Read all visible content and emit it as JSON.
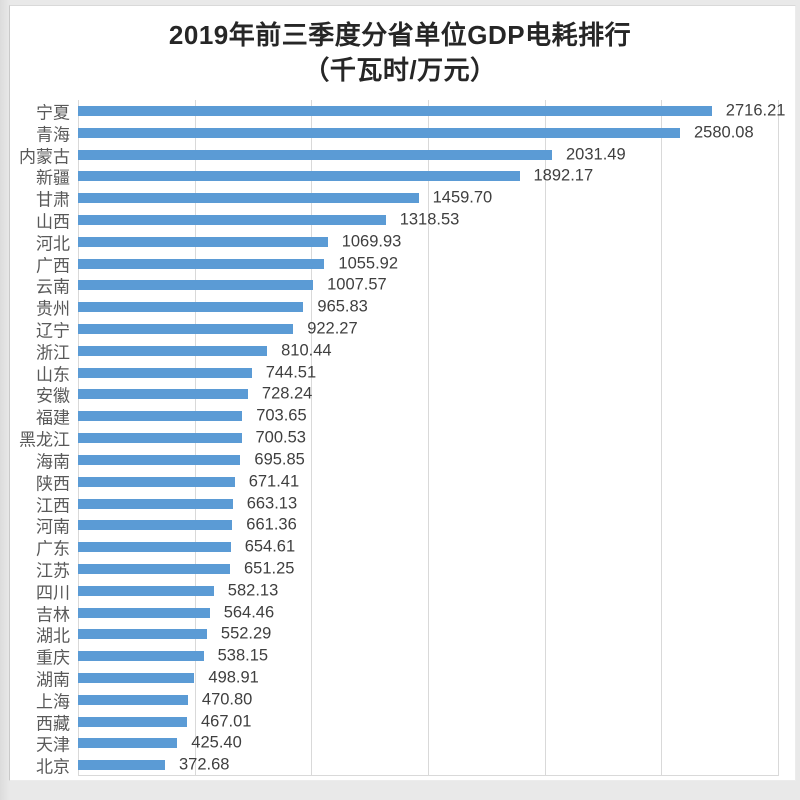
{
  "title": {
    "line1": "2019年前三季度分省单位GDP电耗排行",
    "line2": "（千瓦时/万元）"
  },
  "colors": {
    "bar": "#5b9bd5",
    "gridline": "#d9d9d9",
    "category_label": "#595959",
    "value_label": "#3f3f3f",
    "title_text": "#262626",
    "card_background": "#ffffff",
    "frame_background": "#e9e9e9"
  },
  "chart_data": {
    "type": "bar",
    "orientation": "horizontal",
    "title": "2019年前三季度分省单位GDP电耗排行（千瓦时/万元）",
    "xlabel": "",
    "ylabel": "",
    "xlim": [
      0,
      3000
    ],
    "gridline_interval": 500,
    "grid": true,
    "legend": false,
    "categories": [
      "宁夏",
      "青海",
      "内蒙古",
      "新疆",
      "甘肃",
      "山西",
      "河北",
      "广西",
      "云南",
      "贵州",
      "辽宁",
      "浙江",
      "山东",
      "安徽",
      "福建",
      "黑龙江",
      "海南",
      "陕西",
      "江西",
      "河南",
      "广东",
      "江苏",
      "四川",
      "吉林",
      "湖北",
      "重庆",
      "湖南",
      "上海",
      "西藏",
      "天津",
      "北京"
    ],
    "values": [
      2716.21,
      2580.08,
      2031.49,
      1892.17,
      1459.7,
      1318.53,
      1069.93,
      1055.92,
      1007.57,
      965.83,
      922.27,
      810.44,
      744.51,
      728.24,
      703.65,
      700.53,
      695.85,
      671.41,
      663.13,
      661.36,
      654.61,
      651.25,
      582.13,
      564.46,
      552.29,
      538.15,
      498.91,
      470.8,
      467.01,
      425.4,
      372.68
    ],
    "value_labels": [
      "2716.21",
      "2580.08",
      "2031.49",
      "1892.17",
      "1459.70",
      "1318.53",
      "1069.93",
      "1055.92",
      "1007.57",
      "965.83",
      "922.27",
      "810.44",
      "744.51",
      "728.24",
      "703.65",
      "700.53",
      "695.85",
      "671.41",
      "663.13",
      "661.36",
      "654.61",
      "651.25",
      "582.13",
      "564.46",
      "552.29",
      "538.15",
      "498.91",
      "470.80",
      "467.01",
      "425.40",
      "372.68"
    ]
  }
}
